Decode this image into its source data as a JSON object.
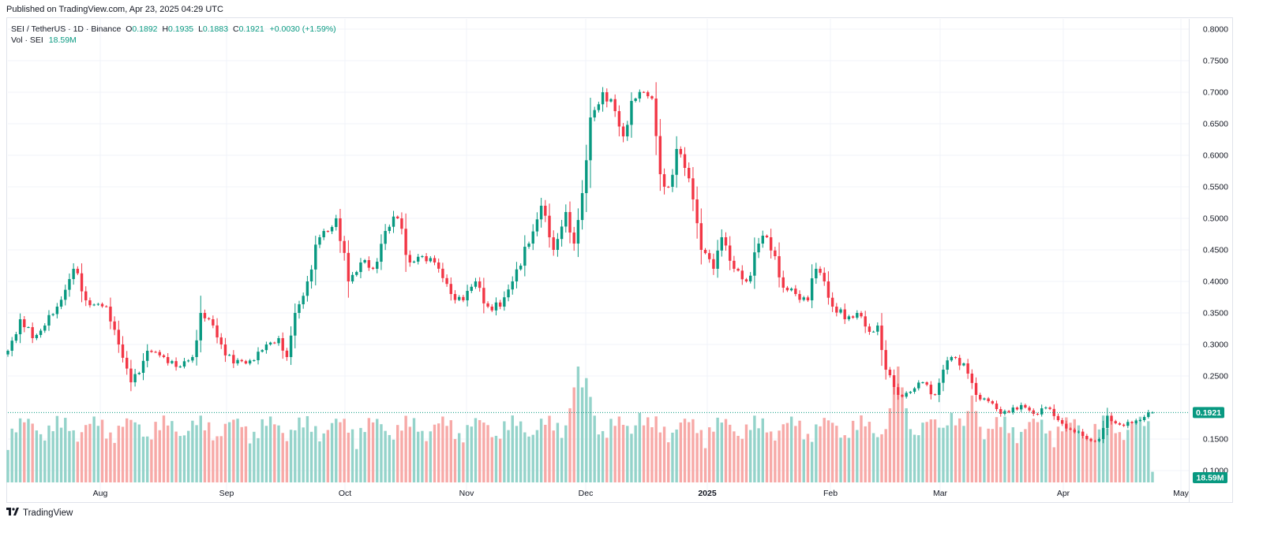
{
  "header": {
    "published": "Published on TradingView.com, Apr 23, 2025 04:29 UTC"
  },
  "legend": {
    "symbol": "SEI / TetherUS · 1D · Binance",
    "open_label": "O",
    "open": "0.1892",
    "high_label": "H",
    "high": "0.1935",
    "low_label": "L",
    "low": "0.1883",
    "close_label": "C",
    "close": "0.1921",
    "change": "+0.0030 (+1.59%)",
    "vol_label": "Vol · SEI",
    "vol_value": "18.59M"
  },
  "footer": {
    "brand": "TradingView"
  },
  "colors": {
    "up": "#089981",
    "down": "#f23645",
    "vol_up": "#94d3ca",
    "vol_down": "#f7a9a7",
    "grid": "#f0f3fa"
  },
  "chart_data": {
    "type": "candlestick",
    "x_ticks": [
      "Aug",
      "Sep",
      "Oct",
      "Nov",
      "Dec",
      "2025",
      "Feb",
      "Mar",
      "Apr",
      "May"
    ],
    "y_ticks": [
      "0.1000",
      "0.1500",
      "0.2500",
      "0.3000",
      "0.3500",
      "0.4000",
      "0.4500",
      "0.5000",
      "0.5500",
      "0.6000",
      "0.6500",
      "0.7000",
      "0.7500",
      "0.8000"
    ],
    "ylim": [
      0.06,
      0.8
    ],
    "last_price": "0.1921",
    "last_volume": "18.59M",
    "anchors": [
      [
        0,
        0.29
      ],
      [
        3,
        0.34
      ],
      [
        6,
        0.31
      ],
      [
        9,
        0.33
      ],
      [
        12,
        0.36
      ],
      [
        16,
        0.42
      ],
      [
        19,
        0.37
      ],
      [
        24,
        0.36
      ],
      [
        27,
        0.3
      ],
      [
        30,
        0.24
      ],
      [
        32,
        0.255
      ],
      [
        34,
        0.29
      ],
      [
        38,
        0.28
      ],
      [
        42,
        0.265
      ],
      [
        45,
        0.28
      ],
      [
        47,
        0.35
      ],
      [
        49,
        0.34
      ],
      [
        52,
        0.3
      ],
      [
        55,
        0.27
      ],
      [
        60,
        0.275
      ],
      [
        63,
        0.3
      ],
      [
        66,
        0.31
      ],
      [
        68,
        0.28
      ],
      [
        70,
        0.35
      ],
      [
        73,
        0.4
      ],
      [
        76,
        0.47
      ],
      [
        80,
        0.5
      ],
      [
        83,
        0.4
      ],
      [
        86,
        0.43
      ],
      [
        89,
        0.42
      ],
      [
        92,
        0.48
      ],
      [
        95,
        0.5
      ],
      [
        98,
        0.43
      ],
      [
        101,
        0.44
      ],
      [
        104,
        0.43
      ],
      [
        108,
        0.38
      ],
      [
        111,
        0.37
      ],
      [
        114,
        0.4
      ],
      [
        117,
        0.36
      ],
      [
        120,
        0.36
      ],
      [
        123,
        0.4
      ],
      [
        127,
        0.46
      ],
      [
        130,
        0.52
      ],
      [
        133,
        0.45
      ],
      [
        136,
        0.51
      ],
      [
        138,
        0.46
      ],
      [
        140,
        0.54
      ],
      [
        142,
        0.66
      ],
      [
        145,
        0.7
      ],
      [
        148,
        0.67
      ],
      [
        150,
        0.63
      ],
      [
        153,
        0.69
      ],
      [
        155,
        0.7
      ],
      [
        157,
        0.69
      ],
      [
        159,
        0.57
      ],
      [
        161,
        0.55
      ],
      [
        163,
        0.61
      ],
      [
        165,
        0.58
      ],
      [
        167,
        0.53
      ],
      [
        169,
        0.45
      ],
      [
        172,
        0.42
      ],
      [
        174,
        0.47
      ],
      [
        177,
        0.42
      ],
      [
        180,
        0.4
      ],
      [
        183,
        0.46
      ],
      [
        185,
        0.47
      ],
      [
        187,
        0.44
      ],
      [
        189,
        0.39
      ],
      [
        192,
        0.38
      ],
      [
        195,
        0.37
      ],
      [
        197,
        0.42
      ],
      [
        199,
        0.4
      ],
      [
        201,
        0.36
      ],
      [
        204,
        0.34
      ],
      [
        207,
        0.35
      ],
      [
        210,
        0.32
      ],
      [
        212,
        0.33
      ],
      [
        214,
        0.26
      ],
      [
        217,
        0.22
      ],
      [
        220,
        0.225
      ],
      [
        223,
        0.24
      ],
      [
        226,
        0.22
      ],
      [
        228,
        0.26
      ],
      [
        230,
        0.28
      ],
      [
        233,
        0.27
      ],
      [
        236,
        0.22
      ],
      [
        239,
        0.21
      ],
      [
        242,
        0.19
      ],
      [
        245,
        0.2
      ],
      [
        248,
        0.2
      ],
      [
        250,
        0.19
      ],
      [
        253,
        0.2
      ],
      [
        256,
        0.18
      ],
      [
        259,
        0.165
      ],
      [
        262,
        0.155
      ],
      [
        264,
        0.147
      ],
      [
        266,
        0.15
      ],
      [
        268,
        0.187
      ],
      [
        270,
        0.175
      ],
      [
        272,
        0.171
      ],
      [
        274,
        0.175
      ],
      [
        276,
        0.18
      ],
      [
        278,
        0.1921
      ]
    ],
    "volume_spikes": [
      [
        48,
        0.35
      ],
      [
        80,
        0.45
      ],
      [
        98,
        0.48
      ],
      [
        130,
        0.55
      ],
      [
        137,
        0.6
      ],
      [
        139,
        1.0
      ],
      [
        141,
        0.9
      ],
      [
        154,
        0.6
      ],
      [
        180,
        0.4
      ],
      [
        211,
        0.42
      ],
      [
        217,
        1.0
      ],
      [
        230,
        0.6
      ],
      [
        235,
        0.75
      ],
      [
        241,
        0.55
      ],
      [
        266,
        0.3
      ]
    ]
  }
}
